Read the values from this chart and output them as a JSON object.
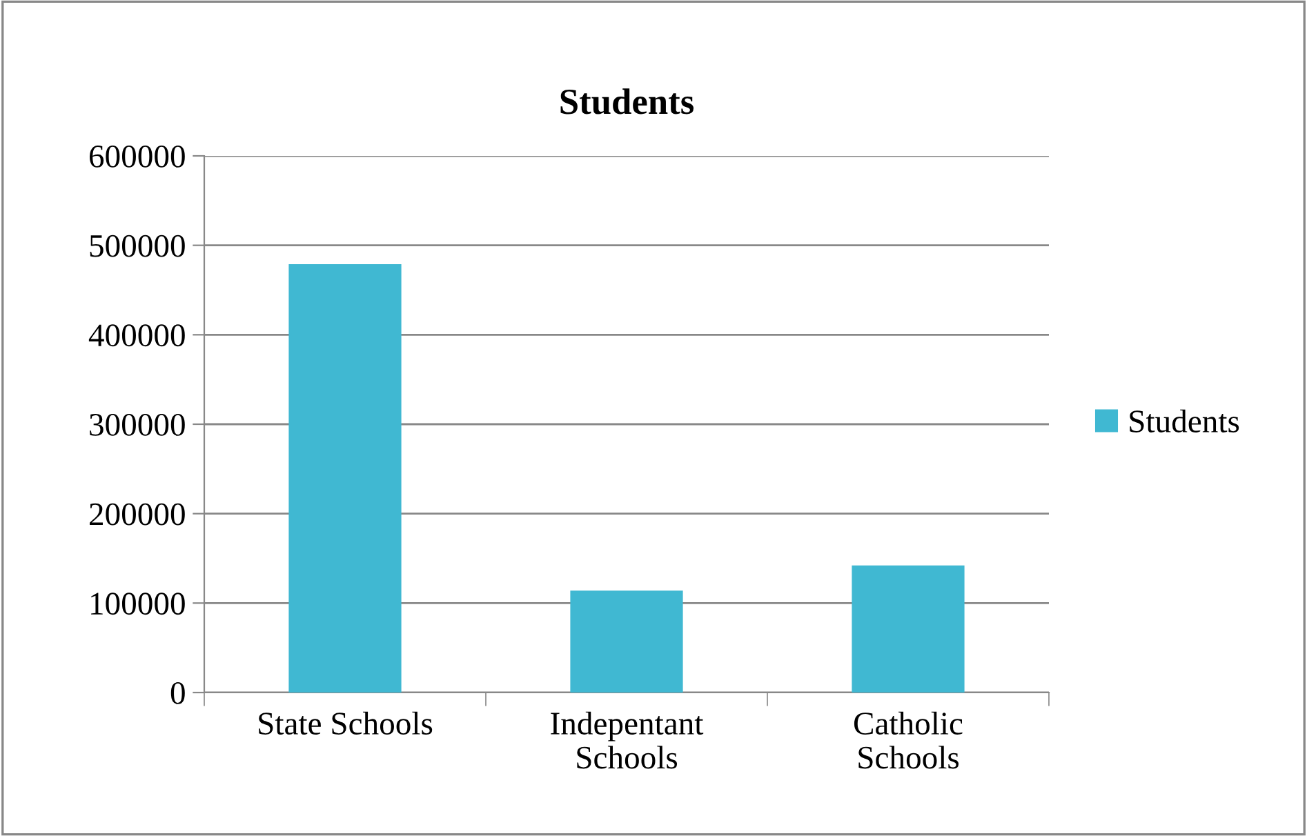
{
  "chart_data": {
    "type": "bar",
    "title": "Students",
    "categories": [
      "State Schools",
      "Indepentant\nSchools",
      "Catholic\nSchools"
    ],
    "series": [
      {
        "name": "Students",
        "color": "#40b8d2",
        "values": [
          479000,
          114000,
          142000
        ]
      }
    ],
    "ylim": [
      0,
      600000
    ],
    "yticks": [
      0,
      100000,
      200000,
      300000,
      400000,
      500000,
      600000
    ],
    "grid": "y",
    "legend": "right"
  }
}
